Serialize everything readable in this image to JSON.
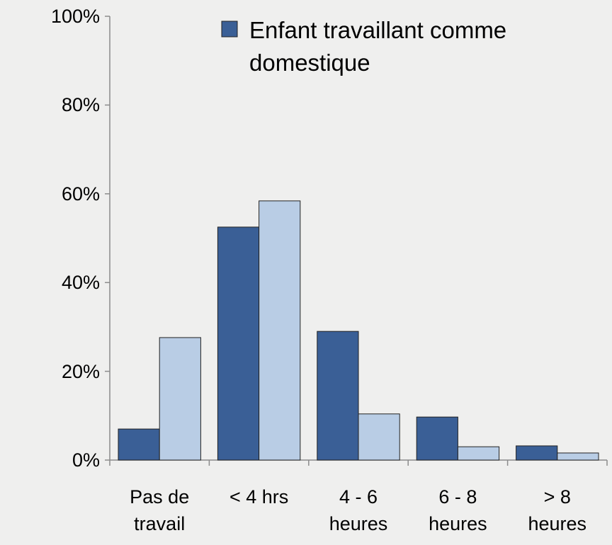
{
  "chart_data": {
    "type": "bar",
    "categories": [
      "Pas de\ntravail",
      "< 4 hrs",
      "4 - 6\nheures",
      "6 - 8\nheures",
      "> 8\nheures"
    ],
    "series": [
      {
        "name": "Enfant travaillant comme domestique",
        "color": "#3a5f96",
        "values": [
          7.0,
          52.5,
          29.0,
          9.7,
          3.2
        ]
      },
      {
        "color": "#b9cde5",
        "values": [
          27.6,
          58.4,
          10.4,
          3.0,
          1.6
        ]
      }
    ],
    "ylim": [
      0,
      100
    ],
    "yticks": [
      {
        "value": 0,
        "label": "0%"
      },
      {
        "value": 20,
        "label": "20%"
      },
      {
        "value": 40,
        "label": "40%"
      },
      {
        "value": 60,
        "label": "60%"
      },
      {
        "value": 80,
        "label": "80%"
      },
      {
        "value": 100,
        "label": "100%"
      }
    ],
    "grid": false
  }
}
